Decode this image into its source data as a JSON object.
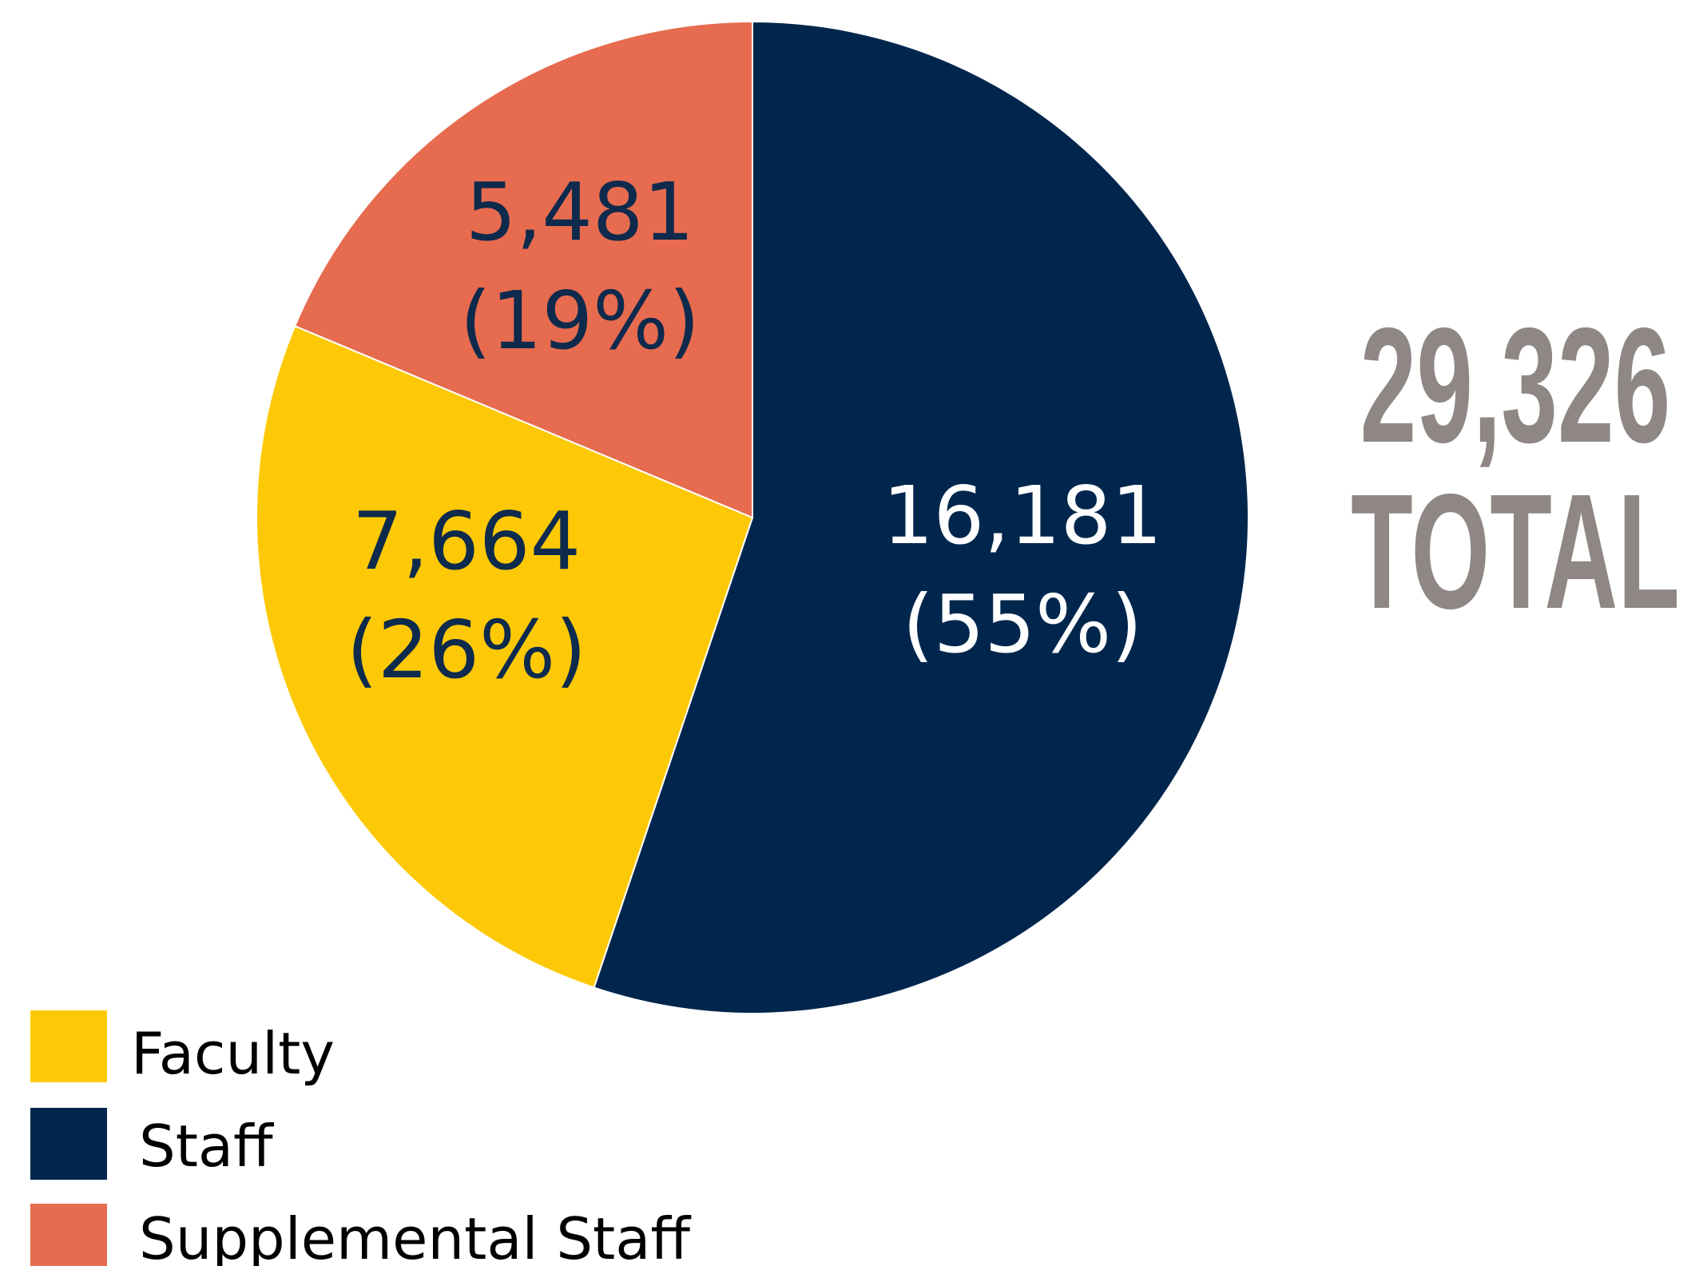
{
  "chart_data": {
    "type": "pie",
    "series": [
      {
        "name": "Faculty",
        "color": "#fdc907",
        "values": [
          7664
        ],
        "value_labels": [
          "7,664"
        ],
        "percent": [
          26
        ],
        "percent_labels": [
          "(26%)"
        ]
      },
      {
        "name": "Staff",
        "color": "#00264d",
        "values": [
          16181
        ],
        "value_labels": [
          "16,181"
        ],
        "percent": [
          55
        ],
        "percent_labels": [
          "(55%)"
        ]
      },
      {
        "name": "Supplemental Staff",
        "color": "#e76b4f",
        "values": [
          5481
        ],
        "value_labels": [
          "5,481"
        ],
        "percent": [
          19
        ],
        "percent_labels": [
          "(19%)"
        ]
      }
    ],
    "total": 29326,
    "total_label": "29,326",
    "total_caption": "TOTAL"
  }
}
